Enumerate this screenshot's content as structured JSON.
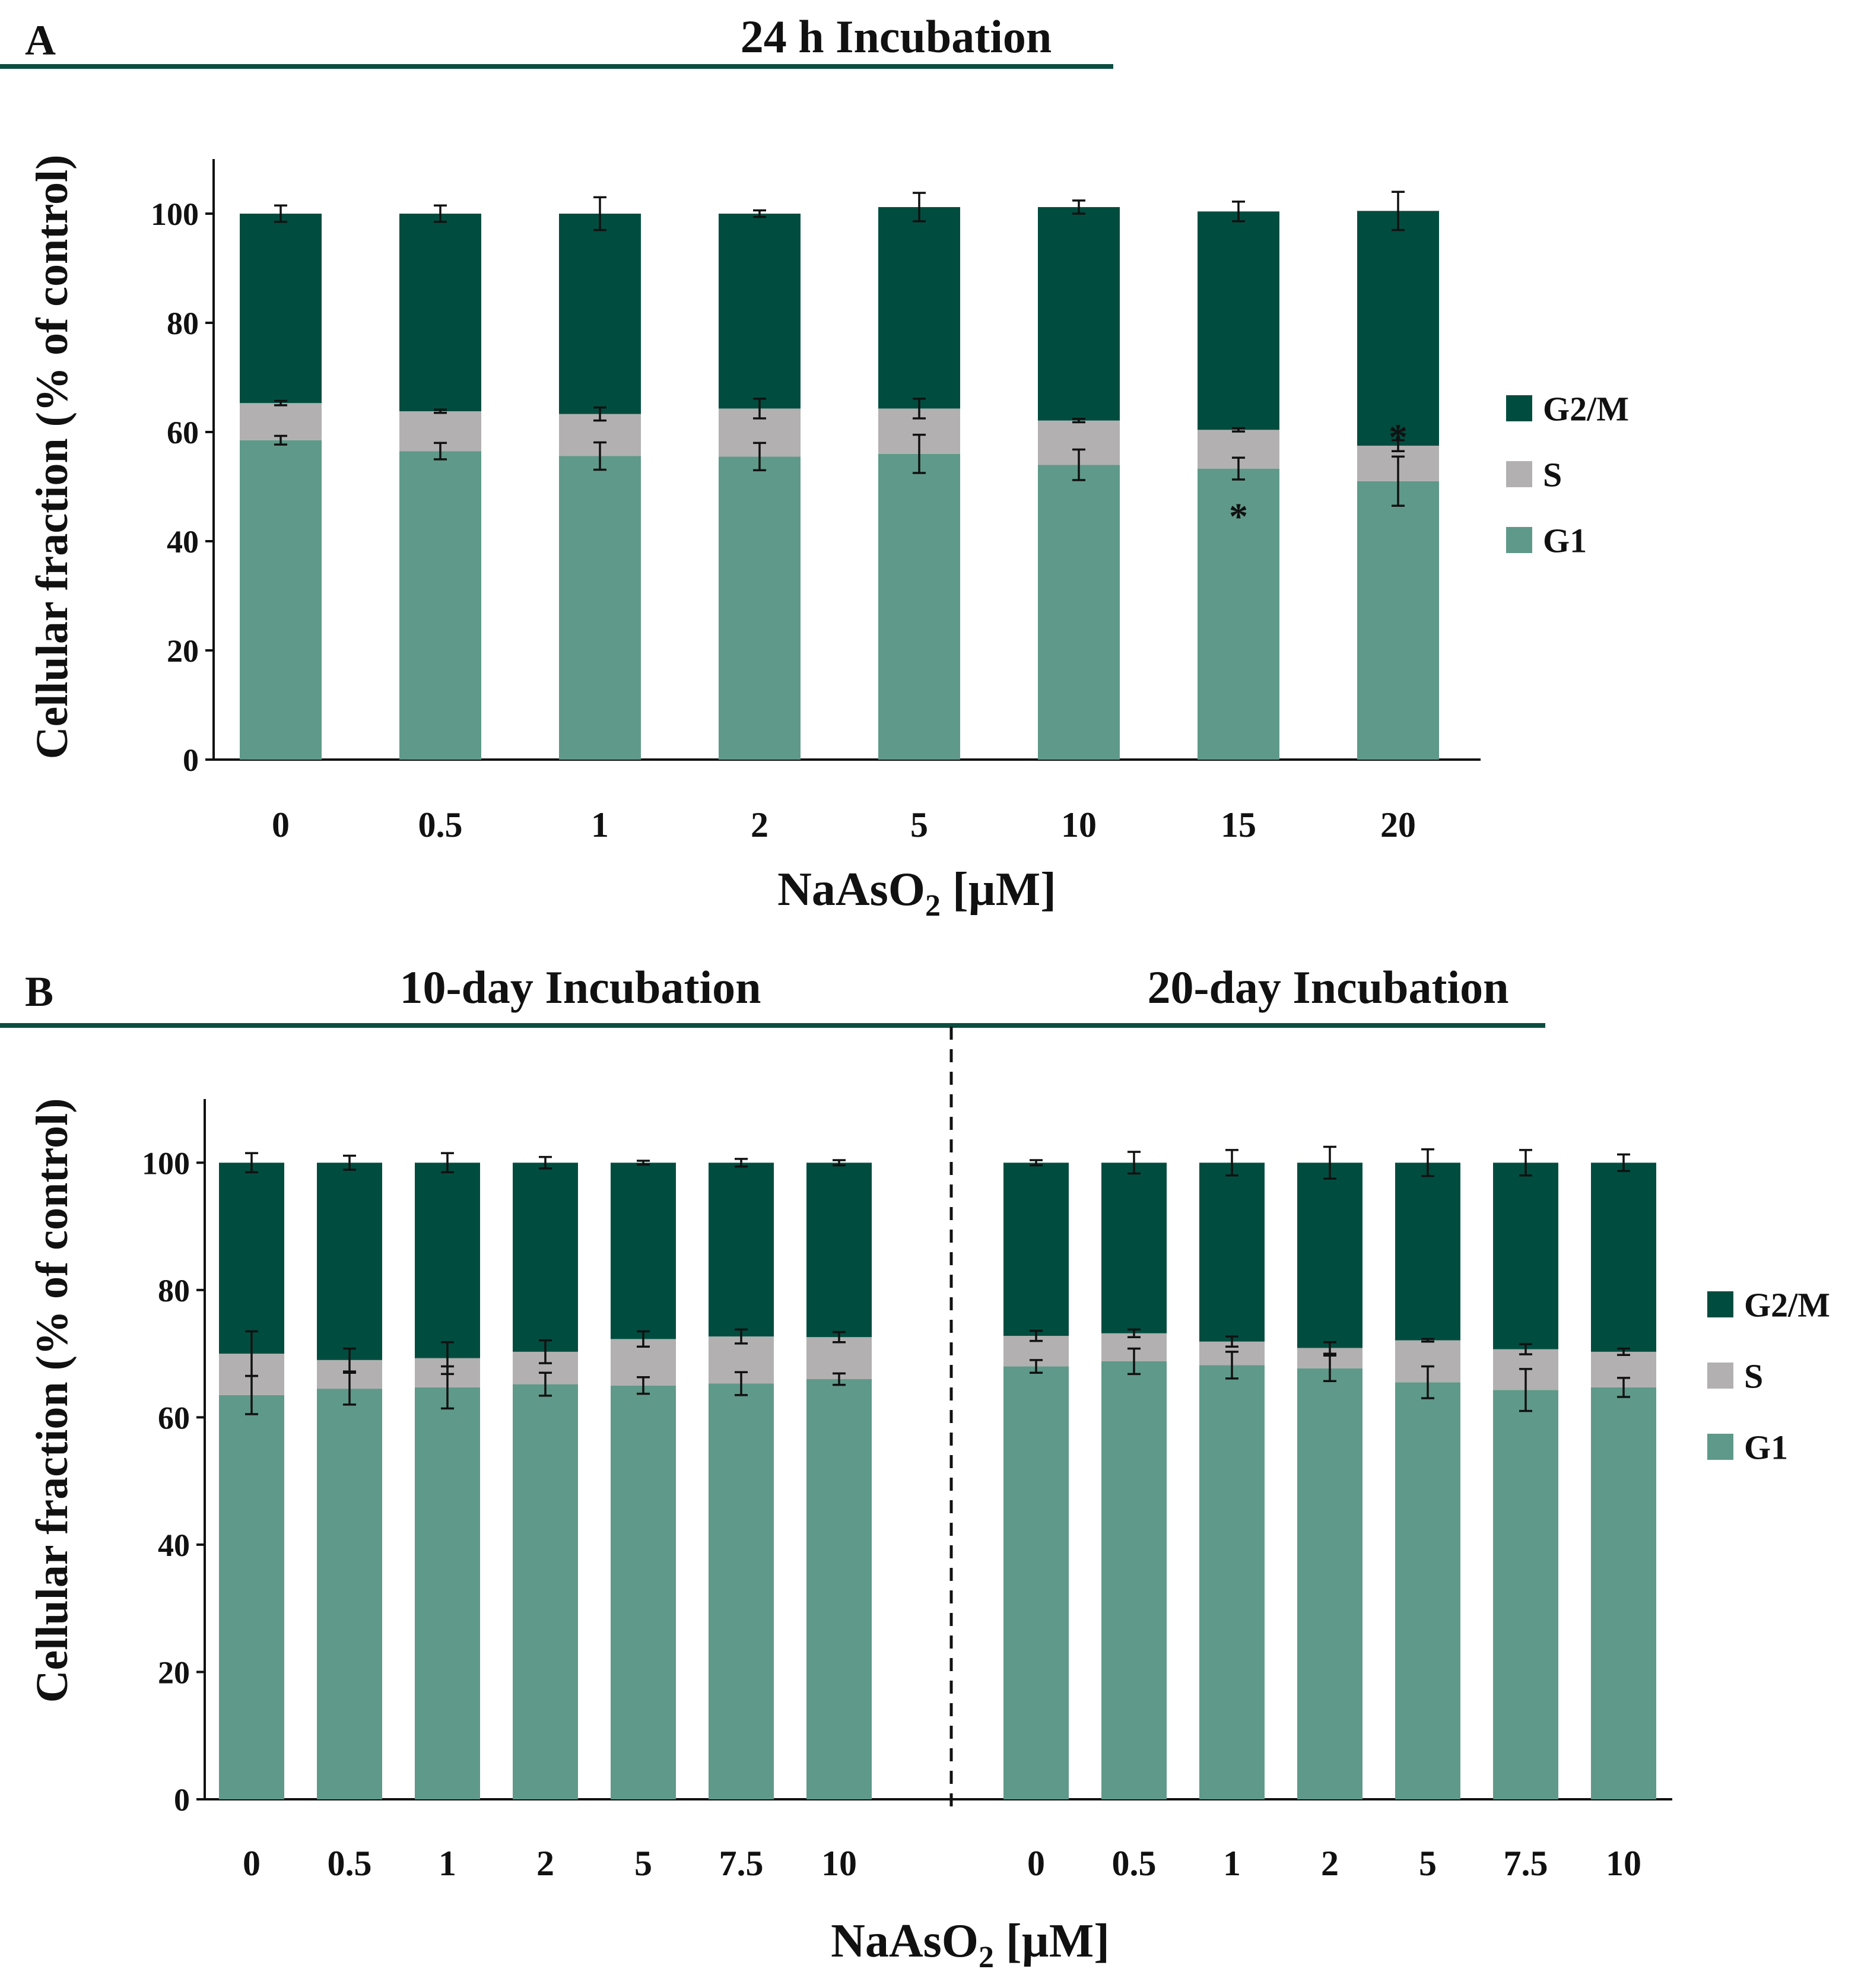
{
  "colors": {
    "g1": "#5f9989",
    "s": "#b2b0b0",
    "g2m": "#004d40",
    "accent": "#0b4d40",
    "axis": "#111111"
  },
  "chart_data": [
    {
      "id": "A",
      "panel_label": "A",
      "type": "bar",
      "stacked": true,
      "title": "24 h Incubation",
      "xlabel_main": "NaAsO",
      "xlabel_sub": "2",
      "xlabel_unit": " [µM]",
      "ylabel": "Cellular fraction (% of control)",
      "ylim": [
        0,
        110
      ],
      "yticks": [
        "0",
        "20",
        "40",
        "60",
        "80",
        "100"
      ],
      "categories": [
        "0",
        "0.5",
        "1",
        "2",
        "5",
        "10",
        "15",
        "20"
      ],
      "series": [
        {
          "name": "G1",
          "color_key": "g1",
          "values": [
            58.5,
            56.5,
            55.6,
            55.5,
            56.0,
            54.0,
            53.3,
            51.0
          ],
          "errors": [
            0.8,
            1.5,
            2.5,
            2.5,
            3.5,
            2.8,
            2.0,
            4.5
          ]
        },
        {
          "name": "S",
          "color_key": "s",
          "values": [
            6.8,
            7.3,
            7.7,
            8.8,
            8.3,
            8.1,
            7.1,
            6.5
          ],
          "errors": [
            0.4,
            0.3,
            1.2,
            1.8,
            1.8,
            0.3,
            0.3,
            1.0
          ]
        },
        {
          "name": "G2/M",
          "color_key": "g2m",
          "values": [
            34.7,
            36.2,
            36.7,
            35.7,
            36.9,
            39.1,
            40.0,
            43.0
          ],
          "errors": [
            1.5,
            1.5,
            3.0,
            0.6,
            2.6,
            1.2,
            1.8,
            3.5
          ]
        }
      ],
      "annotations": [
        {
          "text": "*",
          "category": "15",
          "value": 45.5
        },
        {
          "text": "*",
          "category": "20",
          "value": 60.0
        }
      ],
      "legend": {
        "position": "right",
        "entries": [
          "G2/M",
          "S",
          "G1"
        ]
      }
    },
    {
      "id": "B1",
      "panel_label": "B",
      "type": "bar",
      "stacked": true,
      "title": "10-day Incubation",
      "ylabel": "Cellular fraction (% of control)",
      "ylim": [
        0,
        110
      ],
      "yticks": [
        "0",
        "20",
        "40",
        "60",
        "80",
        "100"
      ],
      "categories": [
        "0",
        "0.5",
        "1",
        "2",
        "5",
        "7.5",
        "10"
      ],
      "series": [
        {
          "name": "G1",
          "color_key": "g1",
          "values": [
            63.5,
            64.5,
            64.7,
            65.2,
            65.0,
            65.3,
            66.0
          ],
          "errors": [
            3.0,
            2.5,
            3.3,
            1.8,
            1.3,
            1.8,
            0.9
          ]
        },
        {
          "name": "S",
          "color_key": "s",
          "values": [
            6.5,
            4.5,
            4.6,
            5.1,
            7.3,
            7.4,
            6.6
          ],
          "errors": [
            3.5,
            1.8,
            2.5,
            1.8,
            1.2,
            1.1,
            0.8
          ]
        },
        {
          "name": "G2/M",
          "color_key": "g2m",
          "values": [
            30.0,
            31.0,
            30.7,
            29.7,
            27.7,
            27.3,
            27.4
          ],
          "errors": [
            1.5,
            1.1,
            1.5,
            0.9,
            0.3,
            0.6,
            0.4
          ]
        }
      ]
    },
    {
      "id": "B2",
      "type": "bar",
      "stacked": true,
      "title": "20-day Incubation",
      "xlabel_main": "NaAsO",
      "xlabel_sub": "2",
      "xlabel_unit": " [µM]",
      "ylim": [
        0,
        110
      ],
      "categories": [
        "0",
        "0.5",
        "1",
        "2",
        "5",
        "7.5",
        "10"
      ],
      "series": [
        {
          "name": "G1",
          "color_key": "g1",
          "values": [
            68.0,
            68.8,
            68.2,
            67.7,
            65.5,
            64.3,
            64.7
          ],
          "errors": [
            1.0,
            2.0,
            2.1,
            2.0,
            2.5,
            3.3,
            1.5
          ]
        },
        {
          "name": "S",
          "color_key": "s",
          "values": [
            4.8,
            4.4,
            3.7,
            3.2,
            6.6,
            6.4,
            5.6
          ],
          "errors": [
            0.8,
            0.6,
            0.8,
            0.9,
            0.2,
            0.8,
            0.5
          ]
        },
        {
          "name": "G2/M",
          "color_key": "g2m",
          "values": [
            27.2,
            26.8,
            28.1,
            29.1,
            27.9,
            29.3,
            29.7
          ],
          "errors": [
            0.4,
            1.7,
            2.0,
            2.5,
            2.1,
            2.0,
            1.3
          ]
        }
      ],
      "legend": {
        "position": "right",
        "entries": [
          "G2/M",
          "S",
          "G1"
        ]
      }
    }
  ]
}
